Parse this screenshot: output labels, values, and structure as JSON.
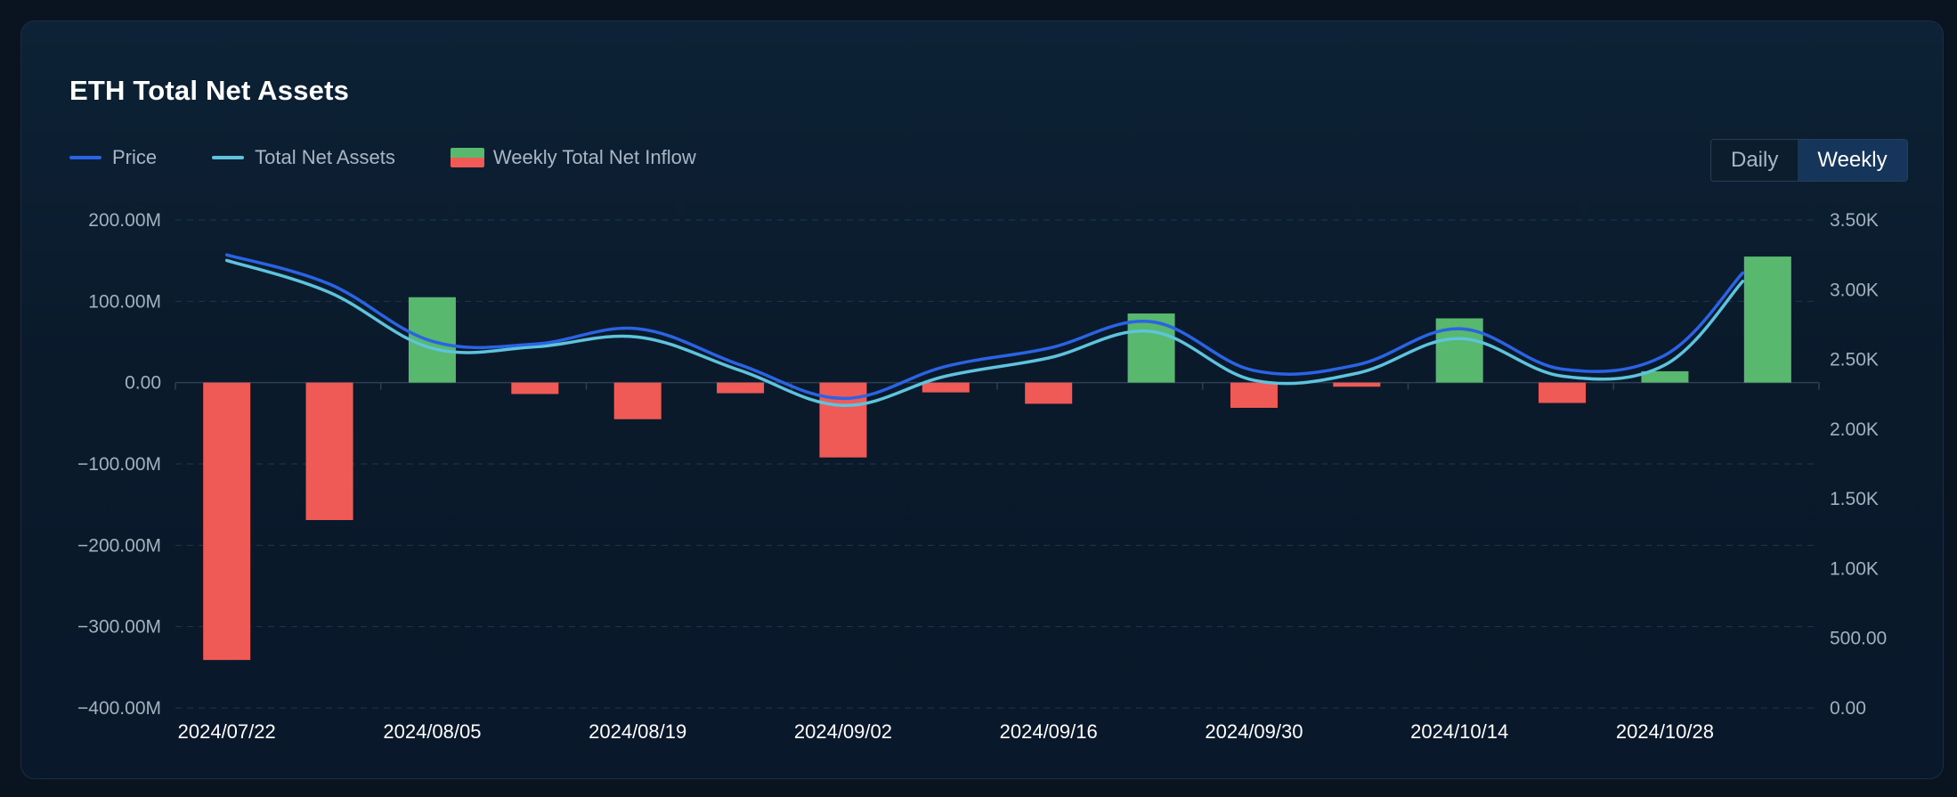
{
  "title": "ETH Total Net Assets",
  "legend": {
    "price": "Price",
    "net_assets": "Total Net Assets",
    "inflow": "Weekly Total Net Inflow"
  },
  "toggle": {
    "daily": "Daily",
    "weekly": "Weekly",
    "selected": "Weekly"
  },
  "colors": {
    "price": "#2a63e4",
    "net_assets": "#5ec3dc",
    "positive": "#57b86e",
    "negative": "#ef5a57"
  },
  "chart_data": {
    "type": "bar",
    "grid": true,
    "legend_position": "top-left",
    "x_tick_labels": [
      "2024/07/22",
      "2024/08/05",
      "2024/08/19",
      "2024/09/02",
      "2024/09/16",
      "2024/09/30",
      "2024/10/14",
      "2024/10/28"
    ],
    "categories": [
      "2024/07/22",
      "2024/07/29",
      "2024/08/05",
      "2024/08/12",
      "2024/08/19",
      "2024/08/26",
      "2024/09/02",
      "2024/09/09",
      "2024/09/16",
      "2024/09/23",
      "2024/09/30",
      "2024/10/07",
      "2024/10/14",
      "2024/10/21",
      "2024/10/28",
      "2024/11/04"
    ],
    "left_axis": {
      "ticks": [
        "200.00M",
        "100.00M",
        "0.00",
        "−100.00M",
        "−200.00M",
        "−300.00M",
        "−400.00M"
      ],
      "ylim": [
        -400,
        200
      ],
      "unit": "M"
    },
    "right_axis": {
      "ticks": [
        "3.50K",
        "3.00K",
        "2.50K",
        "2.00K",
        "1.50K",
        "1.00K",
        "500.00",
        "0.00"
      ],
      "ylim": [
        0,
        3500
      ]
    },
    "series": [
      {
        "name": "Weekly Total Net Inflow",
        "kind": "bar",
        "axis": "left",
        "values": [
          -341,
          -169,
          105,
          -14,
          -45,
          -13,
          -92,
          -12,
          -26,
          85,
          -31,
          -5,
          79,
          -25,
          14,
          155
        ]
      },
      {
        "name": "Price",
        "kind": "line",
        "axis": "right",
        "values": [
          3250,
          3040,
          2630,
          2610,
          2720,
          2460,
          2220,
          2450,
          2580,
          2770,
          2420,
          2460,
          2720,
          2430,
          2530,
          3120
        ]
      },
      {
        "name": "Total Net Assets",
        "kind": "line",
        "axis": "right",
        "values": [
          3210,
          2980,
          2580,
          2590,
          2660,
          2420,
          2170,
          2380,
          2510,
          2700,
          2350,
          2400,
          2650,
          2380,
          2460,
          3060
        ]
      }
    ]
  }
}
